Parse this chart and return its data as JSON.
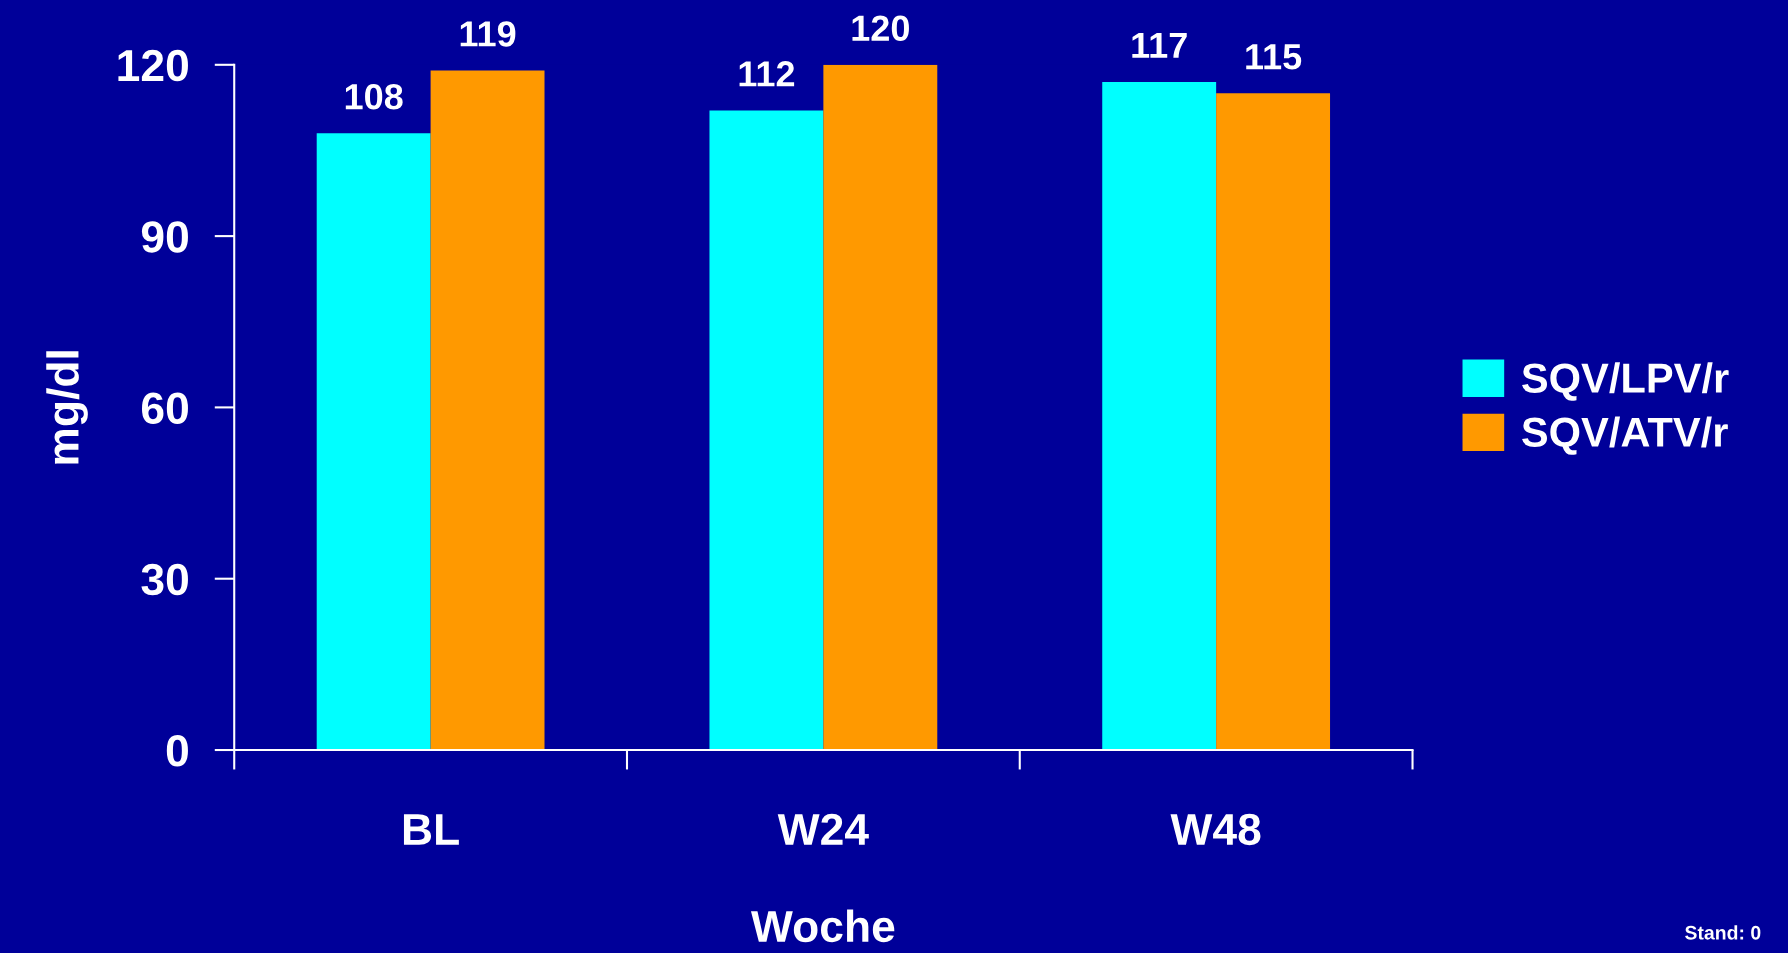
{
  "chart_data": {
    "type": "bar",
    "xlabel": "Woche",
    "ylabel": "mg/dl",
    "categories": [
      "BL",
      "W24",
      "W48"
    ],
    "series": [
      {
        "name": "SQV/LPV/r",
        "color": "#00ffff",
        "values": [
          108,
          112,
          117
        ]
      },
      {
        "name": "SQV/ATV/r",
        "color": "#ff9900",
        "values": [
          119,
          120,
          115
        ]
      }
    ],
    "ylim": [
      0,
      120
    ],
    "yticks": [
      0,
      30,
      60,
      90,
      120
    ],
    "grid": false,
    "legend": "right",
    "data_labels": true,
    "annotations": [
      "Stand: 0"
    ]
  }
}
